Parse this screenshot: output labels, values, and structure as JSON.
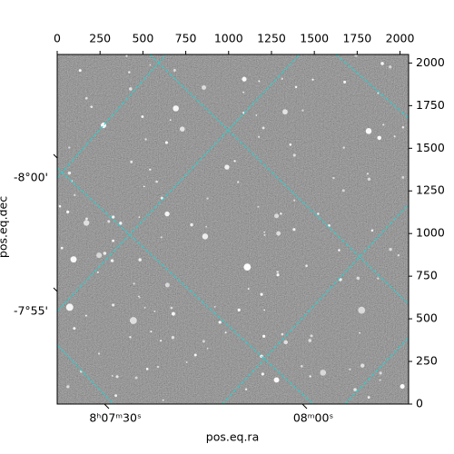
{
  "chart_data": {
    "type": "image",
    "xlabel": "pos.eq.ra",
    "ylabel": "pos.eq.dec",
    "xlim": [
      0,
      2050
    ],
    "ylim": [
      0,
      2050
    ],
    "xticks": [
      0,
      250,
      500,
      750,
      1000,
      1250,
      1500,
      1750,
      2000
    ],
    "yticks": [
      0,
      250,
      500,
      750,
      1000,
      1250,
      1500,
      1750,
      2000
    ],
    "ra_labels": [
      "8ʰ07ᵐ30ˢ",
      "08ᵐ00ˢ"
    ],
    "dec_labels": [
      "-8°00'",
      "-7°55'"
    ],
    "color": "#555555"
  }
}
